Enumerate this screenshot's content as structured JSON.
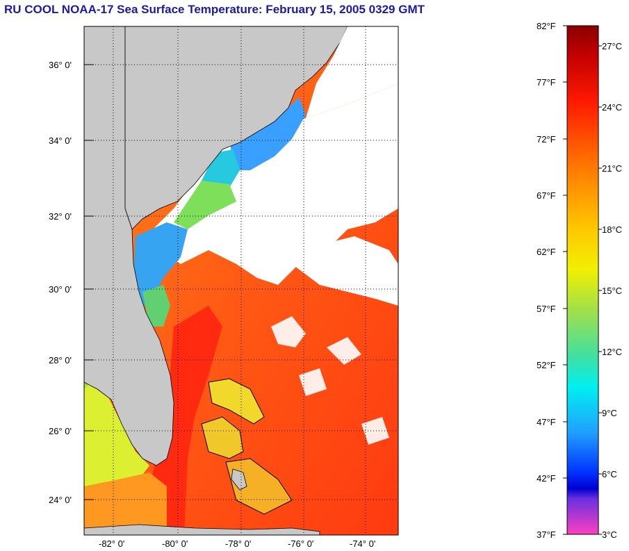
{
  "title": "RU COOL  NOAA-17  Sea Surface Temperature:  February 15, 2005 0329 GMT",
  "map": {
    "lat_labels": [
      "36° 0'",
      "34° 0'",
      "32° 0'",
      "30° 0'",
      "28° 0'",
      "26° 0'",
      "24° 0'"
    ],
    "lon_labels": [
      "-82° 0'",
      "-80° 0'",
      "-78° 0'",
      "-76° 0'",
      "-74° 0'"
    ],
    "colors": {
      "land": "#c8c8c8",
      "cloud": "#ffffff",
      "water_warm": "#ff4a12",
      "water_gulf": "#ff2a10"
    }
  },
  "colorbar": {
    "fahrenheit_labels": [
      "82°F",
      "77°F",
      "72°F",
      "67°F",
      "62°F",
      "57°F",
      "52°F",
      "47°F",
      "42°F",
      "37°F"
    ],
    "celsius_labels": [
      "27°C",
      "24°C",
      "21°C",
      "18°C",
      "15°C",
      "12°C",
      "9°C",
      "6°C",
      "3°C"
    ]
  }
}
